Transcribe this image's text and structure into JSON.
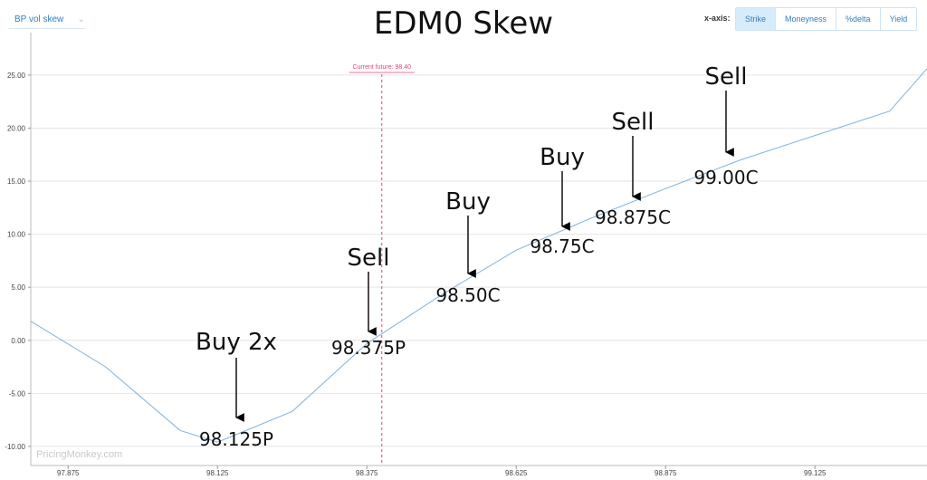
{
  "header": {
    "dropdown_label": "BP vol skew",
    "xaxis_label": "x-axis:",
    "xaxis_options": [
      "Strike",
      "Moneyness",
      "%delta",
      "Yield"
    ],
    "xaxis_active": "Strike"
  },
  "watermark": "PricingMonkey.com",
  "colors": {
    "line": "#7fb3e0",
    "future_line": "#e0457b",
    "active_button": "#d7ecfa",
    "accent": "#2f7fc1"
  },
  "chart_data": {
    "type": "line",
    "title": "EDM0 Skew",
    "x": [
      97.8125,
      97.9375,
      98.0625,
      98.125,
      98.25,
      98.375,
      98.5,
      98.625,
      98.75,
      98.875,
      99.0,
      99.125,
      99.25,
      99.3125
    ],
    "y": [
      1.8,
      -2.5,
      -8.5,
      -9.6,
      -6.7,
      -0.3,
      4.3,
      8.5,
      11.5,
      14.3,
      17.0,
      19.3,
      21.6,
      25.6
    ],
    "xlim": [
      97.8125,
      99.3125
    ],
    "ylim": [
      -11.8,
      29.0
    ],
    "x_ticks": [
      "97.875",
      "98.125",
      "98.375",
      "98.625",
      "98.875",
      "99.125"
    ],
    "y_ticks": [
      "25.00",
      "20.00",
      "15.00",
      "10.00",
      "5.00",
      "0.00",
      "-5.00",
      "-10.00"
    ],
    "grid": true,
    "current_future": {
      "label": "Current future: 98.40",
      "x": 98.4
    },
    "annotations": [
      {
        "action": "Buy 2x",
        "strike": "98.125P"
      },
      {
        "action": "Sell",
        "strike": "98.375P"
      },
      {
        "action": "Buy",
        "strike": "98.50C"
      },
      {
        "action": "Buy",
        "strike": "98.75C"
      },
      {
        "action": "Sell",
        "strike": "98.875C"
      },
      {
        "action": "Sell",
        "strike": "99.00C"
      }
    ]
  }
}
